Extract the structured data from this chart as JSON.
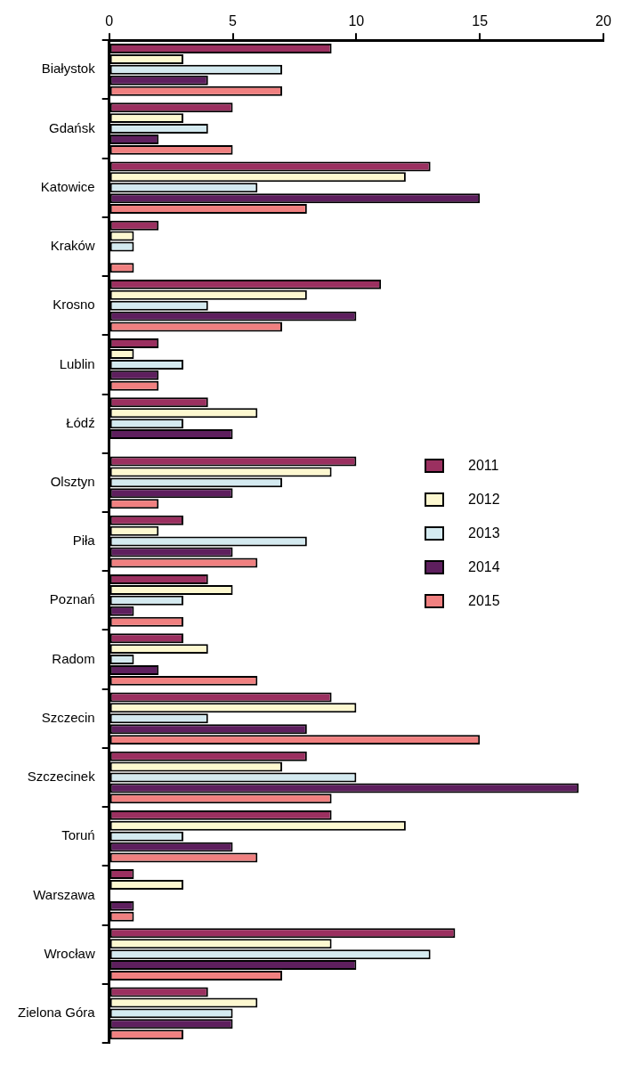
{
  "chart_data": {
    "type": "bar",
    "orientation": "horizontal",
    "categories": [
      "Białystok",
      "Gdańsk",
      "Katowice",
      "Kraków",
      "Krosno",
      "Lublin",
      "Łódź",
      "Olsztyn",
      "Piła",
      "Poznań",
      "Radom",
      "Szczecin",
      "Szczecinek",
      "Toruń",
      "Warszawa",
      "Wrocław",
      "Zielona Góra"
    ],
    "series": [
      {
        "name": "2011",
        "color": "#9b3060",
        "values": [
          9,
          5,
          13,
          2,
          11,
          2,
          4,
          10,
          3,
          4,
          3,
          9,
          8,
          9,
          1,
          14,
          4
        ]
      },
      {
        "name": "2012",
        "color": "#fdf8d0",
        "values": [
          3,
          3,
          12,
          1,
          8,
          1,
          6,
          9,
          2,
          5,
          4,
          10,
          7,
          12,
          3,
          9,
          6
        ]
      },
      {
        "name": "2013",
        "color": "#d4eaf0",
        "values": [
          7,
          4,
          6,
          1,
          4,
          3,
          3,
          7,
          8,
          3,
          1,
          4,
          10,
          3,
          0,
          13,
          5
        ]
      },
      {
        "name": "2014",
        "color": "#5e1f5e",
        "values": [
          4,
          2,
          15,
          0,
          10,
          2,
          5,
          5,
          5,
          1,
          2,
          8,
          19,
          5,
          1,
          10,
          5
        ]
      },
      {
        "name": "2015",
        "color": "#f08080",
        "values": [
          7,
          5,
          8,
          1,
          7,
          2,
          0,
          2,
          6,
          3,
          6,
          15,
          9,
          6,
          1,
          7,
          3
        ]
      }
    ],
    "xlim": [
      0,
      20
    ],
    "xticks": [
      0,
      5,
      10,
      15,
      20
    ],
    "grid": false,
    "legend": "right"
  }
}
